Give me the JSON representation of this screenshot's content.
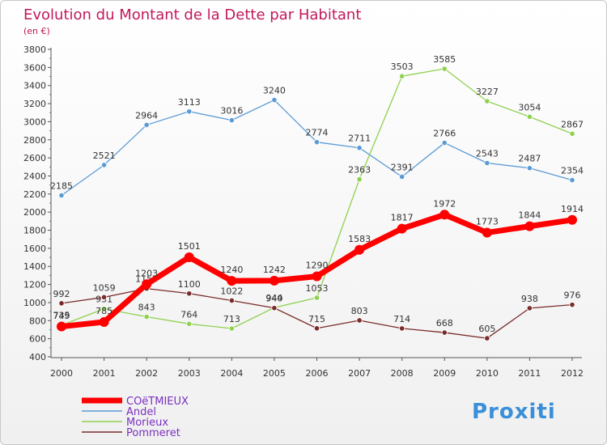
{
  "chart_data": {
    "type": "line",
    "title": "Evolution du Montant de la Dette par Habitant",
    "subtitle": "(en €)",
    "xlabel": "",
    "ylabel": "",
    "categories": [
      "2000",
      "2001",
      "2002",
      "2003",
      "2004",
      "2005",
      "2006",
      "2007",
      "2008",
      "2009",
      "2010",
      "2011",
      "2012"
    ],
    "ylim": [
      400,
      3800
    ],
    "yticks": [
      "400",
      "600",
      "800",
      "1000",
      "1200",
      "1400",
      "1600",
      "1800",
      "2000",
      "2200",
      "2400",
      "2600",
      "2800",
      "3000",
      "3200",
      "3400",
      "3600",
      "3800"
    ],
    "grid": false,
    "legend_position": "bottom-left",
    "series": [
      {
        "name": "Andel",
        "color": "#5b9bd5",
        "values": [
          2185,
          2521,
          2964,
          3113,
          3016,
          3240,
          2774,
          2711,
          2391,
          2766,
          2543,
          2487,
          2354
        ]
      },
      {
        "name": "Morieux",
        "color": "#8fd14f",
        "values": [
          749,
          931,
          843,
          764,
          713,
          944,
          1053,
          2363,
          3503,
          3585,
          3227,
          3054,
          2867
        ]
      },
      {
        "name": "Pommeret",
        "color": "#7b2b2b",
        "values": [
          992,
          1059,
          1155,
          1100,
          1022,
          940,
          715,
          803,
          714,
          668,
          605,
          938,
          976
        ]
      },
      {
        "name": "COëTMIEUX",
        "color": "#ff0000",
        "values": [
          735,
          785,
          1203,
          1501,
          1240,
          1242,
          1290,
          1583,
          1817,
          1972,
          1773,
          1844,
          1914
        ]
      }
    ],
    "legend_order": [
      "COëTMIEUX",
      "Andel",
      "Morieux",
      "Pommeret"
    ]
  },
  "logo_text": "Proxiti",
  "colors": {
    "title": "#c2185b",
    "axis": "#333333",
    "label": "#333333"
  }
}
